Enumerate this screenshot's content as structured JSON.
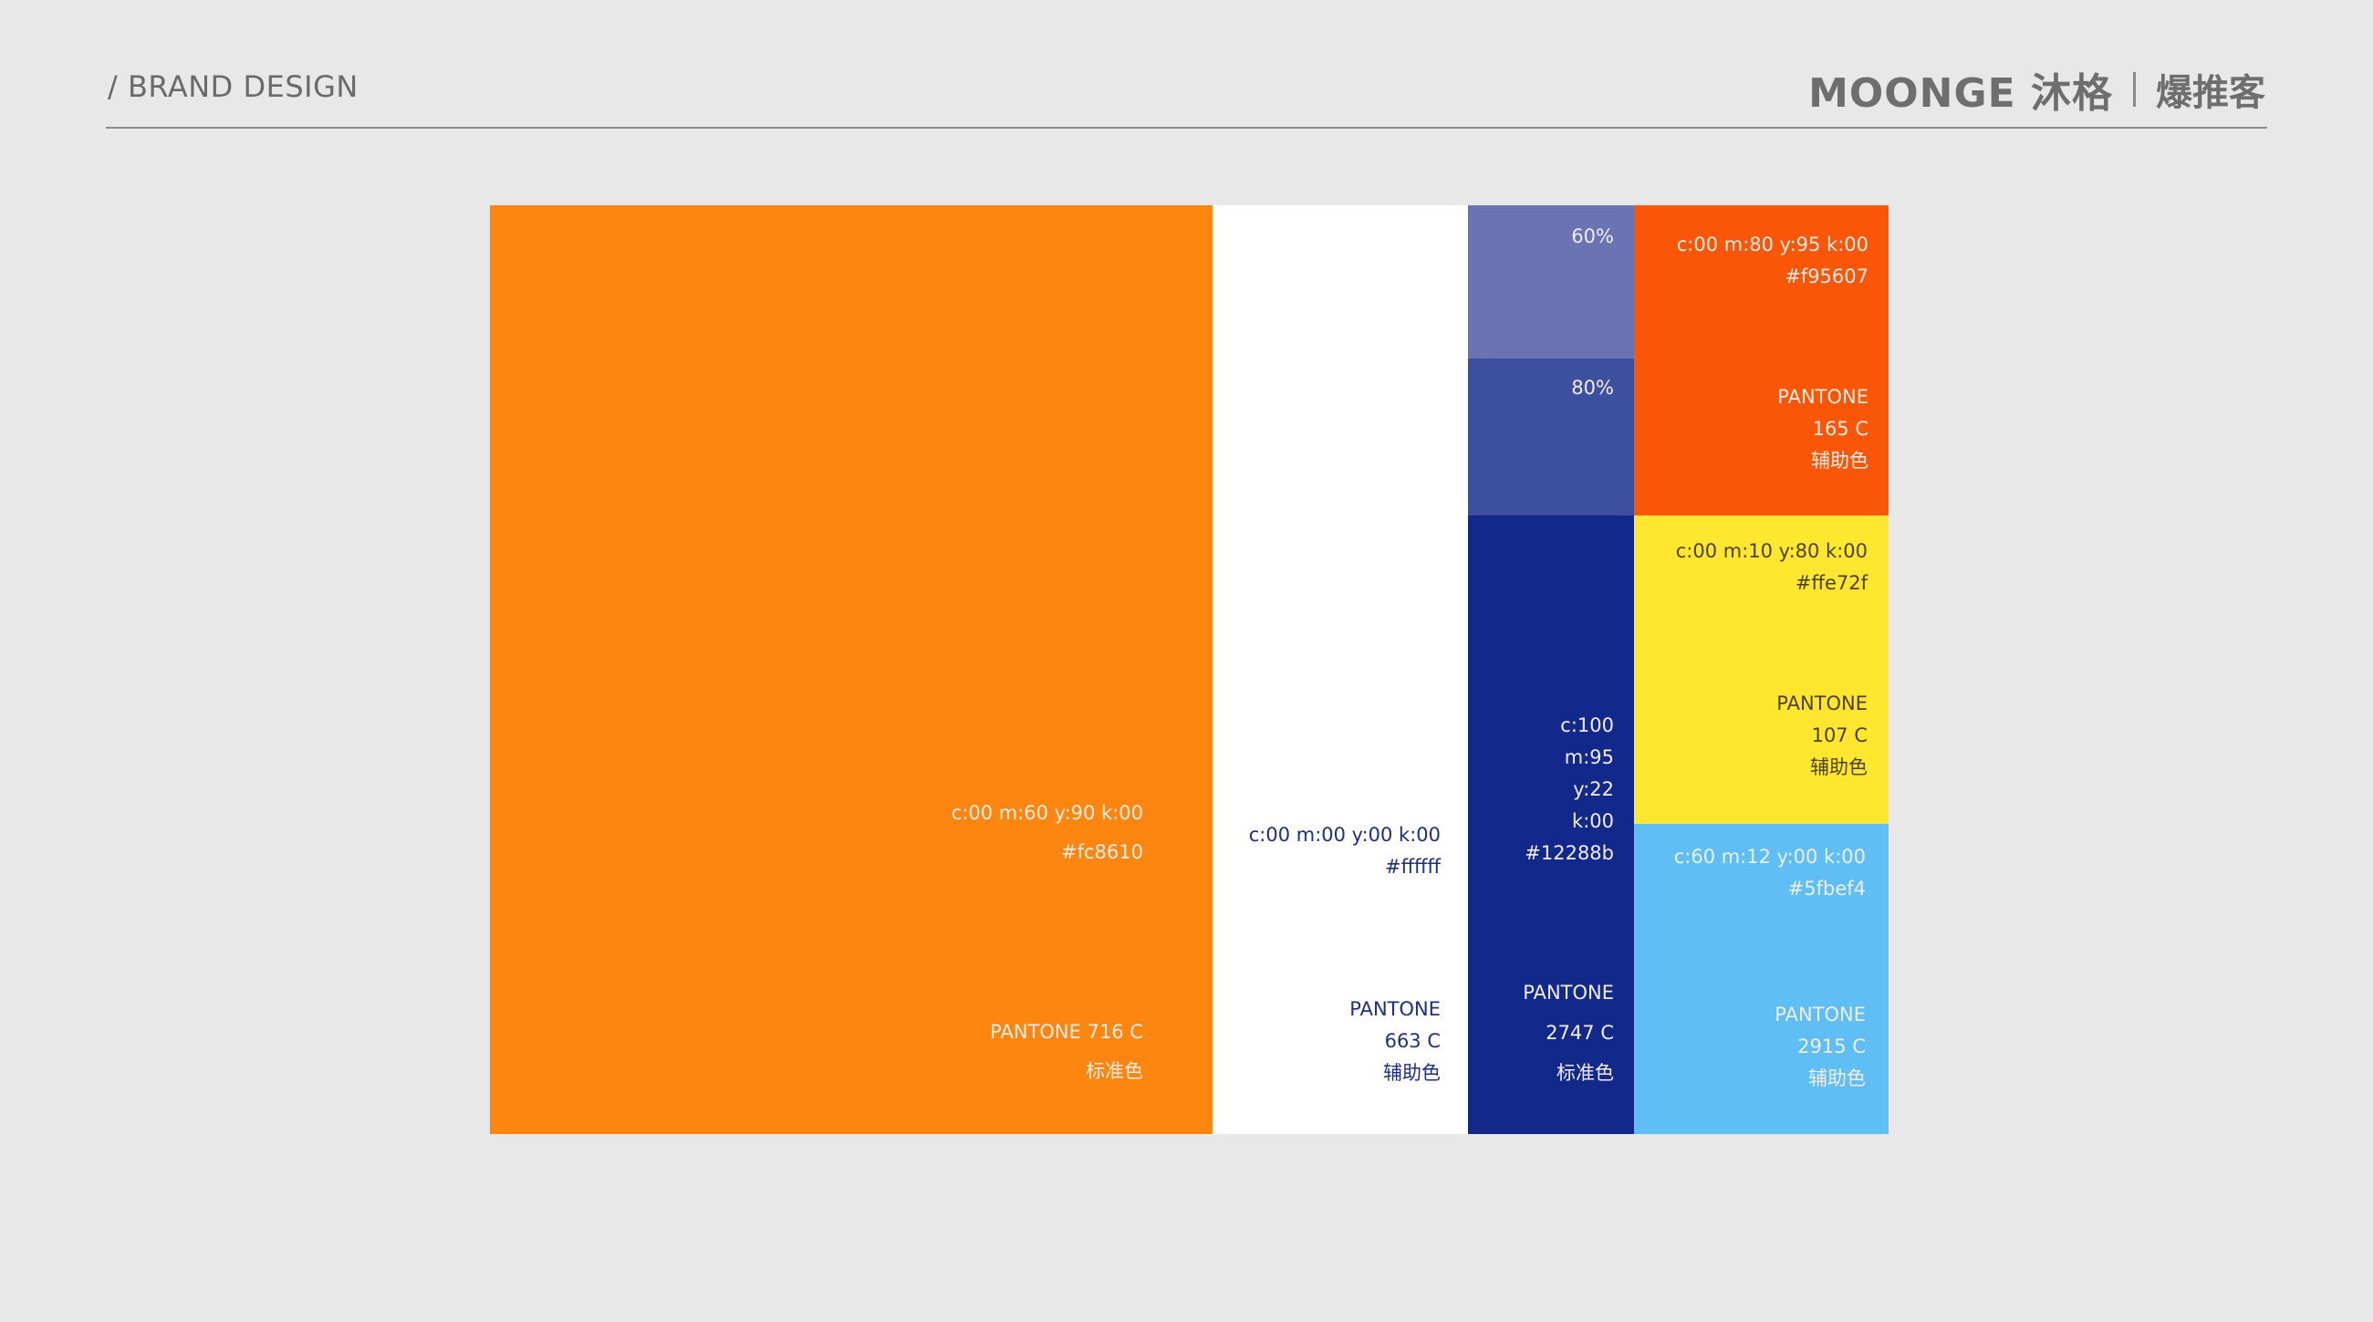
{
  "header": {
    "title": "/ BRAND DESIGN",
    "logo_brand": "MOONGE 沐格",
    "logo_partner": "爆推客"
  },
  "palette": {
    "orange": {
      "hex_color": "#fc8610",
      "cmyk": "c:00 m:60 y:90 k:00",
      "hex": "#fc8610",
      "pantone": "PANTONE  716 C",
      "role": "标准色"
    },
    "white": {
      "hex_color": "#ffffff",
      "cmyk": "c:00 m:00 y:00 k:00",
      "hex": "#ffffff",
      "pantone_label": "PANTONE",
      "pantone_code": "663 C",
      "role": "辅助色"
    },
    "navy": {
      "hex_color": "#12288b",
      "tint_60_color": "#6a74b2",
      "tint_80_color": "#3d4f9f",
      "tint_60": "60%",
      "tint_80": "80%",
      "c": "c:100",
      "m": "m:95",
      "y": "y:22",
      "k": "k:00",
      "hex": "#12288b",
      "pantone_label": "PANTONE",
      "pantone_code": "2747 C",
      "role": "标准色"
    },
    "red_orange": {
      "hex_color": "#f95607",
      "cmyk": "c:00 m:80 y:95 k:00",
      "hex": "#f95607",
      "pantone_label": "PANTONE",
      "pantone_code": "165 C",
      "role": "辅助色"
    },
    "yellow": {
      "hex_color": "#ffe72f",
      "cmyk": "c:00 m:10 y:80 k:00",
      "hex": "#ffe72f",
      "pantone_label": "PANTONE",
      "pantone_code": "107 C",
      "role": "辅助色"
    },
    "sky_blue": {
      "hex_color": "#5fbef4",
      "cmyk": "c:60 m:12 y:00 k:00",
      "hex": "#5fbef4",
      "pantone_label": "PANTONE",
      "pantone_code": "2915 C",
      "role": "辅助色"
    }
  }
}
